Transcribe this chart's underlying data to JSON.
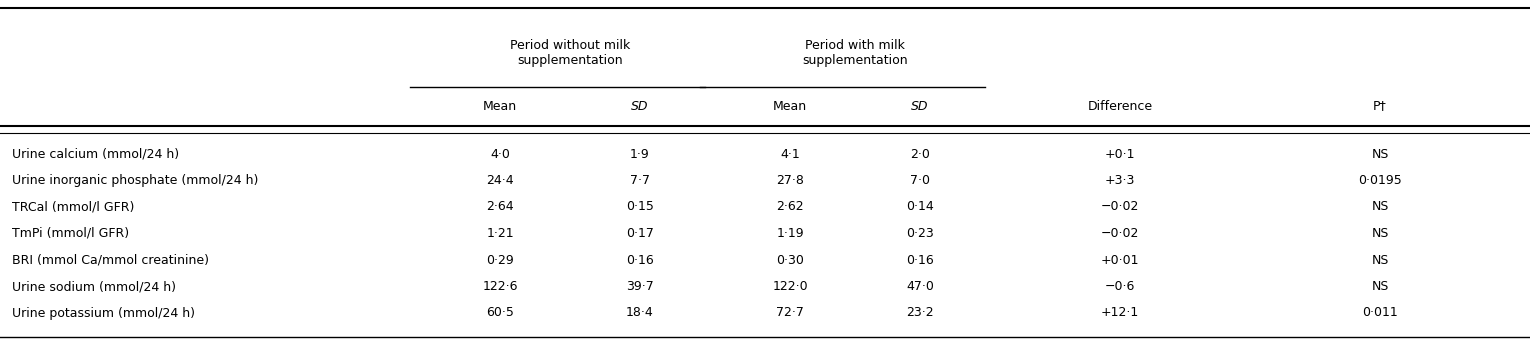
{
  "col_headers_group1": "Period without milk\nsupplementation",
  "col_headers_group2": "Period with milk\nsupplementation",
  "col_headers_sub": [
    "Mean",
    "SD",
    "Mean",
    "SD",
    "Difference",
    "P†"
  ],
  "sub_italic": [
    false,
    true,
    false,
    true,
    false,
    false
  ],
  "rows": [
    [
      "Urine calcium (mmol/24 h)",
      "4·0",
      "1·9",
      "4·1",
      "2·0",
      "+0·1",
      "NS"
    ],
    [
      "Urine inorganic phosphate (mmol/24 h)",
      "24·4",
      "7·7",
      "27·8",
      "7·0",
      "+3·3",
      "0·0195"
    ],
    [
      "TRCal (mmol/l GFR)",
      "2·64",
      "0·15",
      "2·62",
      "0·14",
      "−0·02",
      "NS"
    ],
    [
      "TmPi (mmol/l GFR)",
      "1·21",
      "0·17",
      "1·19",
      "0·23",
      "−0·02",
      "NS"
    ],
    [
      "BRI (mmol Ca/mmol creatinine)",
      "0·29",
      "0·16",
      "0·30",
      "0·16",
      "+0·01",
      "NS"
    ],
    [
      "Urine sodium (mmol/24 h)",
      "122·6",
      "39·7",
      "122·0",
      "47·0",
      "−0·6",
      "NS"
    ],
    [
      "Urine potassium (mmol/24 h)",
      "60·5",
      "18·4",
      "72·7",
      "23·2",
      "+12·1",
      "0·011"
    ]
  ],
  "background_color": "#ffffff",
  "text_color": "#000000",
  "font_size": 9.0
}
